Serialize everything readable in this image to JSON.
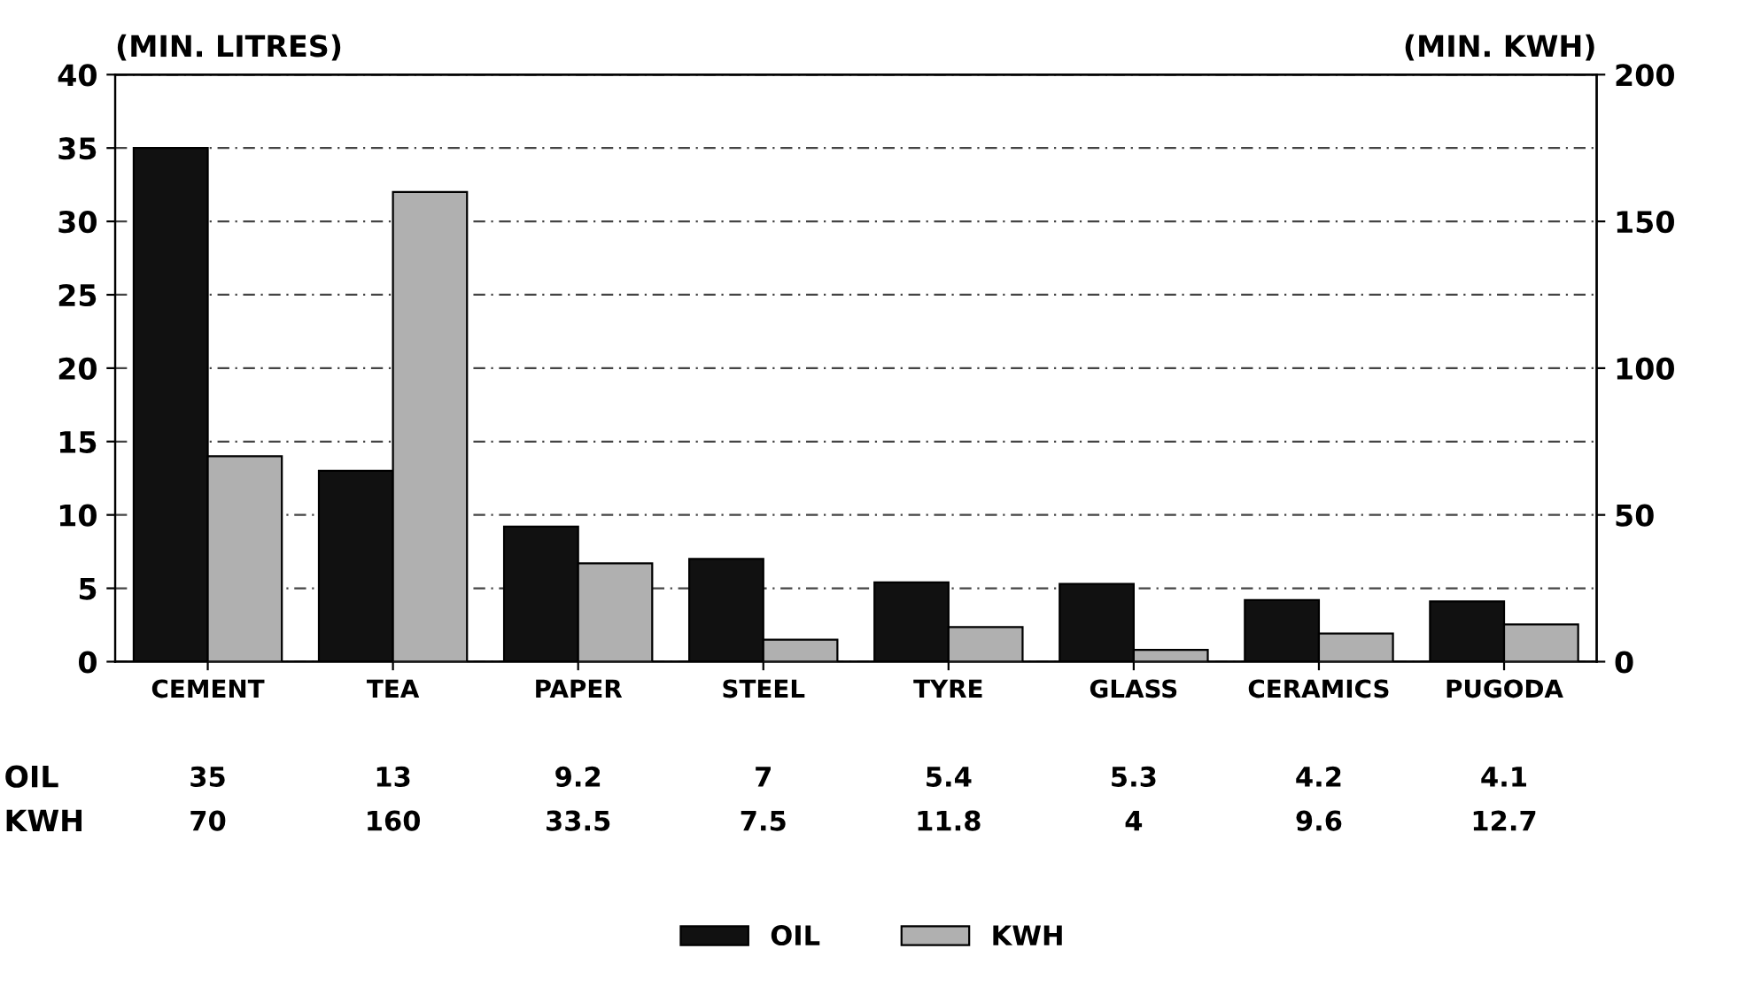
{
  "chart_data": {
    "type": "bar",
    "ylabel": "(MIN. LITRES)",
    "y2label": "(MIN. KWH)",
    "categories": [
      "CEMENT",
      "TEA",
      "PAPER",
      "STEEL",
      "TYRE",
      "GLASS",
      "CERAMICS",
      "PUGODA"
    ],
    "series": [
      {
        "name": "OIL",
        "color": "#111111",
        "values": [
          35,
          13,
          9.2,
          7,
          5.4,
          5.3,
          4.2,
          4.1
        ]
      },
      {
        "name": "KWH",
        "color": "#b0b0b0",
        "axis": "y2",
        "values": [
          70,
          160,
          33.5,
          7.5,
          11.8,
          4,
          9.6,
          12.7
        ]
      }
    ],
    "ylim": [
      0,
      40
    ],
    "yticks": [
      0,
      5,
      10,
      15,
      20,
      25,
      30,
      35,
      40
    ],
    "y2lim": [
      0,
      200
    ],
    "y2ticks": [
      0,
      50,
      100,
      150,
      200
    ],
    "grid": "y",
    "legend": "bottom",
    "data_labels": true
  }
}
